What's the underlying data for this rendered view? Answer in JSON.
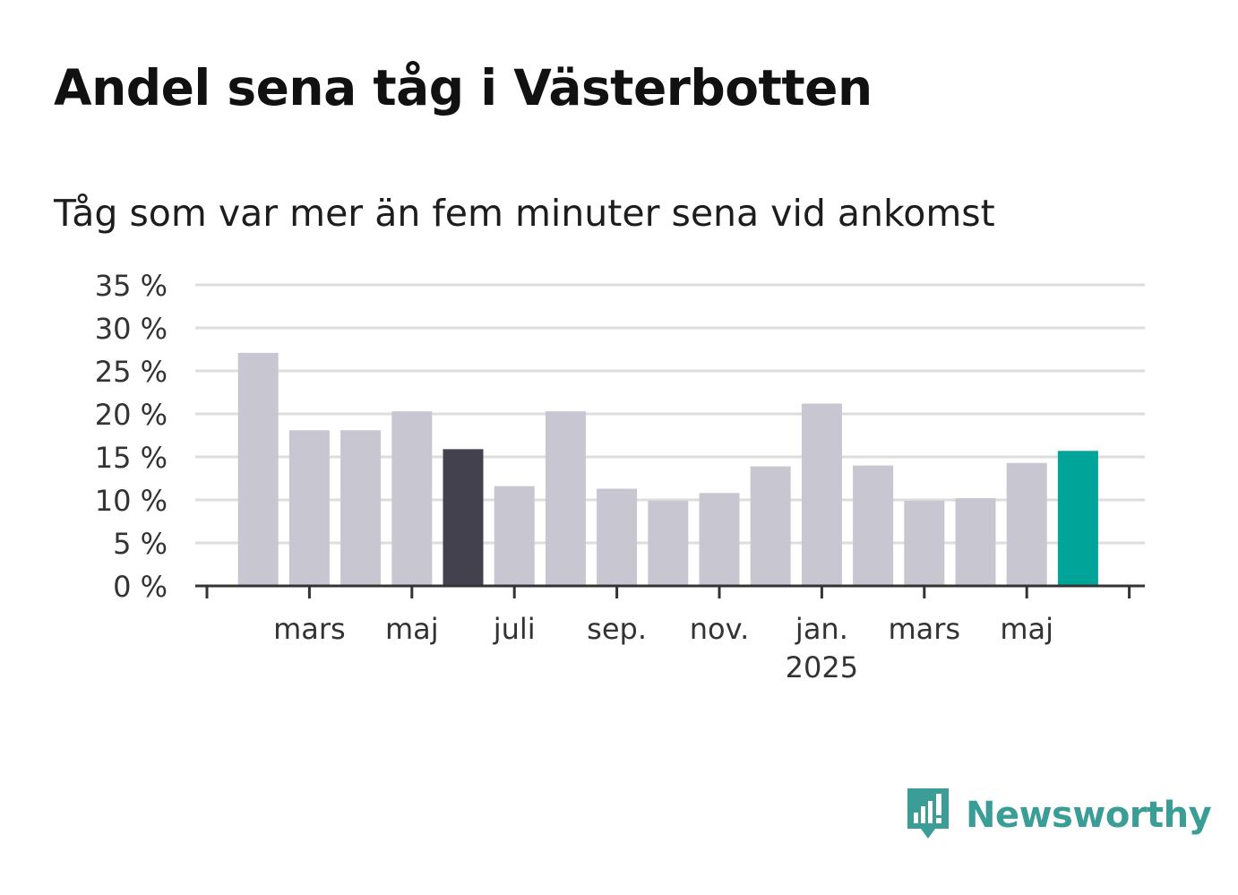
{
  "header": {
    "title": "Andel sena tåg i Västerbotten",
    "subtitle": "Tåg som var mer än fem minuter sena vid ankomst"
  },
  "colors": {
    "bar": "#c8c7d1",
    "highlight_dark": "#43414e",
    "highlight_current": "#00a498",
    "grid": "#dddddd",
    "axis": "#333333",
    "brand": "#3a9e96"
  },
  "chart_data": {
    "type": "bar",
    "x": [
      "2024-02",
      "2024-03",
      "2024-04",
      "2024-05",
      "2024-06",
      "2024-07",
      "2024-08",
      "2024-09",
      "2024-10",
      "2024-11",
      "2024-12",
      "2025-01",
      "2025-02",
      "2025-03",
      "2025-04",
      "2025-05",
      "2025-06"
    ],
    "values": [
      27.1,
      18.1,
      18.1,
      20.3,
      15.9,
      11.6,
      20.3,
      11.3,
      9.9,
      10.8,
      13.9,
      21.2,
      14.0,
      9.9,
      10.2,
      14.3,
      15.7
    ],
    "highlight": {
      "dark": "2024-06",
      "current": "2025-06"
    },
    "ylim": [
      0,
      35
    ],
    "yticks": [
      {
        "value": 0,
        "label": "0 %"
      },
      {
        "value": 5,
        "label": "5 %"
      },
      {
        "value": 10,
        "label": "10 %"
      },
      {
        "value": 15,
        "label": "15 %"
      },
      {
        "value": 20,
        "label": "20 %"
      },
      {
        "value": 25,
        "label": "25 %"
      },
      {
        "value": 30,
        "label": "30 %"
      },
      {
        "value": 35,
        "label": "35 %"
      }
    ],
    "xticks": [
      {
        "value": "2024-03",
        "label": "mars"
      },
      {
        "value": "2024-05",
        "label": "maj"
      },
      {
        "value": "2024-07",
        "label": "juli"
      },
      {
        "value": "2024-09",
        "label": "sep."
      },
      {
        "value": "2024-11",
        "label": "nov."
      },
      {
        "value": "2025-01",
        "label": "jan.",
        "sublabel": "2025"
      },
      {
        "value": "2025-03",
        "label": "mars"
      },
      {
        "value": "2025-05",
        "label": "maj"
      }
    ],
    "grid": true,
    "xlabel": "",
    "ylabel": ""
  },
  "brand": {
    "name": "Newsworthy",
    "logo_icon": "bar-chart-speech-bubble-icon"
  }
}
